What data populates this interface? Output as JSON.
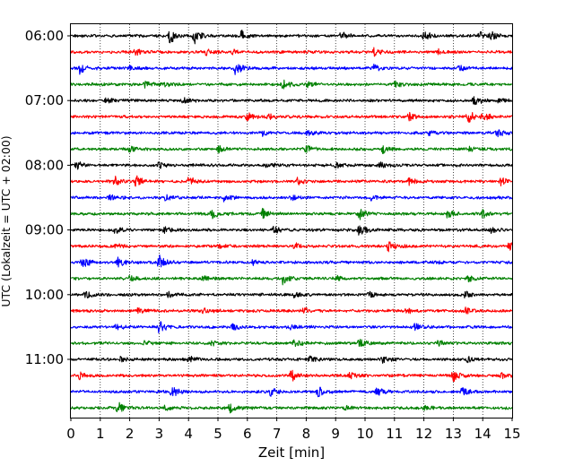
{
  "chart_data": {
    "type": "line",
    "title": "",
    "xlabel": "Zeit  [min]",
    "ylabel": "UTC (Lokalzeit = UTC + 02:00)",
    "xlim": [
      0,
      15
    ],
    "x_ticks": [
      "0",
      "1",
      "2",
      "3",
      "4",
      "5",
      "6",
      "7",
      "8",
      "9",
      "10",
      "11",
      "12",
      "13",
      "14",
      "15"
    ],
    "y_tick_labels": [
      "06:00",
      "07:00",
      "08:00",
      "09:00",
      "10:00",
      "11:00"
    ],
    "grid": "vertical dotted",
    "trace_interval_min": 15,
    "trace_colors": [
      "#000000",
      "#ff0000",
      "#0000ff",
      "#008000"
    ],
    "traces": [
      {
        "start": "06:00",
        "events": [
          [
            3.35,
            1.0
          ],
          [
            4.2,
            0.9
          ],
          [
            5.8,
            0.6
          ],
          [
            9.2,
            0.5
          ],
          [
            12.0,
            0.6
          ],
          [
            13.9,
            0.6
          ],
          [
            14.3,
            0.5
          ]
        ]
      },
      {
        "start": "06:15",
        "events": [
          [
            2.2,
            0.35
          ],
          [
            4.6,
            0.35
          ],
          [
            5.5,
            0.35
          ],
          [
            10.3,
            0.4
          ],
          [
            12.5,
            0.3
          ]
        ]
      },
      {
        "start": "06:30",
        "events": [
          [
            0.3,
            0.6
          ],
          [
            2.0,
            0.3
          ],
          [
            5.6,
            0.9
          ],
          [
            10.3,
            0.4
          ],
          [
            13.2,
            0.3
          ]
        ]
      },
      {
        "start": "06:45",
        "events": [
          [
            2.5,
            0.35
          ],
          [
            3.2,
            0.3
          ],
          [
            7.2,
            0.6
          ],
          [
            8.0,
            0.4
          ],
          [
            11.0,
            0.35
          ]
        ]
      },
      {
        "start": "07:00",
        "events": [
          [
            1.2,
            0.35
          ],
          [
            3.8,
            0.4
          ],
          [
            13.7,
            0.7
          ],
          [
            14.5,
            0.4
          ]
        ]
      },
      {
        "start": "07:15",
        "events": [
          [
            6.0,
            0.45
          ],
          [
            6.7,
            0.4
          ],
          [
            11.5,
            0.5
          ],
          [
            13.5,
            0.85
          ],
          [
            14.0,
            0.5
          ]
        ]
      },
      {
        "start": "07:30",
        "events": [
          [
            6.5,
            0.3
          ],
          [
            8.0,
            0.3
          ],
          [
            12.2,
            0.3
          ],
          [
            14.5,
            0.5
          ]
        ]
      },
      {
        "start": "07:45",
        "events": [
          [
            2.0,
            0.35
          ],
          [
            5.0,
            0.45
          ],
          [
            8.0,
            0.5
          ],
          [
            10.6,
            0.45
          ],
          [
            13.5,
            0.35
          ]
        ]
      },
      {
        "start": "08:00",
        "events": [
          [
            0.2,
            0.55
          ],
          [
            3.0,
            0.35
          ],
          [
            6.6,
            0.45
          ],
          [
            9.0,
            0.35
          ],
          [
            10.5,
            0.35
          ]
        ]
      },
      {
        "start": "08:15",
        "events": [
          [
            1.5,
            0.6
          ],
          [
            2.2,
            0.85
          ],
          [
            4.0,
            0.75
          ],
          [
            7.7,
            0.5
          ],
          [
            11.5,
            0.4
          ],
          [
            14.6,
            0.5
          ]
        ]
      },
      {
        "start": "08:30",
        "events": [
          [
            1.3,
            0.3
          ],
          [
            3.2,
            0.3
          ],
          [
            5.2,
            0.4
          ],
          [
            7.5,
            0.3
          ],
          [
            10.2,
            0.3
          ]
        ]
      },
      {
        "start": "08:45",
        "events": [
          [
            4.8,
            0.55
          ],
          [
            6.5,
            0.55
          ],
          [
            9.8,
            0.65
          ],
          [
            12.8,
            0.6
          ],
          [
            14.0,
            0.5
          ]
        ]
      },
      {
        "start": "09:00",
        "events": [
          [
            1.5,
            0.45
          ],
          [
            3.2,
            0.45
          ],
          [
            6.9,
            0.45
          ],
          [
            9.8,
            0.75
          ],
          [
            14.3,
            0.35
          ]
        ]
      },
      {
        "start": "09:15",
        "events": [
          [
            1.5,
            0.3
          ],
          [
            5.0,
            0.3
          ],
          [
            7.6,
            0.35
          ],
          [
            10.8,
            0.85
          ],
          [
            14.9,
            0.45
          ]
        ]
      },
      {
        "start": "09:30",
        "events": [
          [
            0.4,
            0.7
          ],
          [
            1.6,
            0.5
          ],
          [
            3.0,
            0.85
          ],
          [
            6.2,
            0.3
          ],
          [
            12.2,
            0.3
          ]
        ]
      },
      {
        "start": "09:45",
        "events": [
          [
            2.0,
            0.35
          ],
          [
            4.5,
            0.35
          ],
          [
            7.2,
            0.75
          ],
          [
            9.0,
            0.3
          ],
          [
            13.5,
            0.35
          ]
        ]
      },
      {
        "start": "10:00",
        "events": [
          [
            0.5,
            0.45
          ],
          [
            3.3,
            0.35
          ],
          [
            7.6,
            0.3
          ],
          [
            10.1,
            0.35
          ],
          [
            13.4,
            0.35
          ]
        ]
      },
      {
        "start": "10:15",
        "events": [
          [
            2.3,
            0.4
          ],
          [
            4.5,
            0.3
          ],
          [
            7.9,
            0.35
          ],
          [
            11.4,
            0.3
          ],
          [
            13.4,
            0.35
          ]
        ]
      },
      {
        "start": "10:30",
        "events": [
          [
            1.5,
            0.4
          ],
          [
            3.0,
            0.75
          ],
          [
            5.5,
            0.35
          ],
          [
            7.4,
            0.35
          ],
          [
            11.7,
            0.4
          ]
        ]
      },
      {
        "start": "10:45",
        "events": [
          [
            2.5,
            0.3
          ],
          [
            4.8,
            0.35
          ],
          [
            7.6,
            0.45
          ],
          [
            9.8,
            0.5
          ],
          [
            12.5,
            0.3
          ]
        ]
      },
      {
        "start": "11:00",
        "events": [
          [
            1.7,
            0.3
          ],
          [
            4.0,
            0.35
          ],
          [
            8.1,
            0.4
          ],
          [
            10.6,
            0.35
          ],
          [
            13.5,
            0.3
          ]
        ]
      },
      {
        "start": "11:15",
        "events": [
          [
            0.3,
            0.45
          ],
          [
            7.5,
            0.75
          ],
          [
            9.5,
            0.35
          ],
          [
            13.0,
            0.7
          ],
          [
            14.6,
            0.35
          ]
        ]
      },
      {
        "start": "11:30",
        "events": [
          [
            3.4,
            0.9
          ],
          [
            6.8,
            0.55
          ],
          [
            8.4,
            0.65
          ],
          [
            10.4,
            0.55
          ],
          [
            13.3,
            0.55
          ]
        ]
      },
      {
        "start": "11:45",
        "events": [
          [
            1.6,
            0.75
          ],
          [
            3.2,
            0.35
          ],
          [
            5.4,
            0.65
          ],
          [
            9.3,
            0.3
          ],
          [
            12.0,
            0.3
          ]
        ]
      }
    ]
  }
}
